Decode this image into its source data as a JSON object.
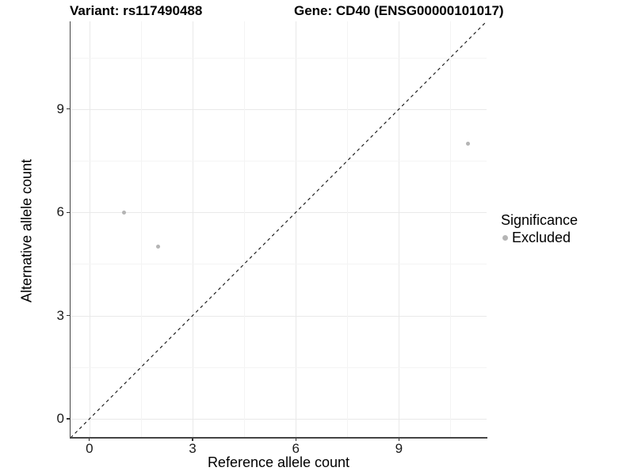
{
  "chart_data": {
    "type": "scatter",
    "titles": [
      {
        "text": "Variant: rs117490488"
      },
      {
        "text": "Gene: CD40 (ENSG00000101017)"
      }
    ],
    "xlabel": "Reference allele count",
    "ylabel": "Alternative allele count",
    "x_ticks": [
      0,
      3,
      6,
      9
    ],
    "y_ticks": [
      0,
      3,
      6,
      9
    ],
    "x_minor_ticks": [
      1.5,
      4.5,
      7.5,
      10.5
    ],
    "y_minor_ticks": [
      1.5,
      4.5,
      7.5,
      10.5
    ],
    "xlim": [
      -0.55,
      11.55
    ],
    "ylim": [
      -0.55,
      11.55
    ],
    "grid": true,
    "aspect": "equal",
    "points": [
      {
        "x": 1,
        "y": 6,
        "series": "Excluded"
      },
      {
        "x": 2,
        "y": 5,
        "series": "Excluded"
      },
      {
        "x": 11,
        "y": 8,
        "series": "Excluded"
      }
    ],
    "identity_line": {
      "slope": 1,
      "intercept": 0,
      "style": "dashed",
      "color": "#111111"
    },
    "legend": {
      "title": "Significance",
      "position": "right",
      "items": [
        {
          "label": "Excluded",
          "color": "#b5b5b5"
        }
      ]
    },
    "colors": {
      "point": "#b5b5b5",
      "grid_major": "#e9e9e9",
      "grid_minor": "#f4f4f4",
      "axis_line": "#454545",
      "dashed_line": "#111111"
    }
  }
}
